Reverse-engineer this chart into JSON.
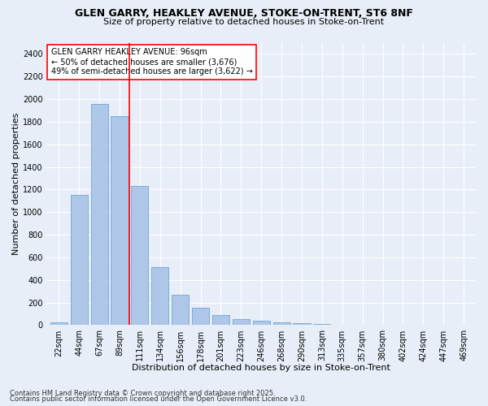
{
  "title1": "GLEN GARRY, HEAKLEY AVENUE, STOKE-ON-TRENT, ST6 8NF",
  "title2": "Size of property relative to detached houses in Stoke-on-Trent",
  "xlabel": "Distribution of detached houses by size in Stoke-on-Trent",
  "ylabel": "Number of detached properties",
  "categories": [
    "22sqm",
    "44sqm",
    "67sqm",
    "89sqm",
    "111sqm",
    "134sqm",
    "156sqm",
    "178sqm",
    "201sqm",
    "223sqm",
    "246sqm",
    "268sqm",
    "290sqm",
    "313sqm",
    "335sqm",
    "357sqm",
    "380sqm",
    "402sqm",
    "424sqm",
    "447sqm",
    "469sqm"
  ],
  "values": [
    22,
    1150,
    1960,
    1850,
    1230,
    510,
    270,
    155,
    90,
    55,
    40,
    25,
    20,
    10,
    5,
    5,
    5,
    5,
    3,
    3,
    3
  ],
  "bar_color": "#aec6e8",
  "bar_edge_color": "#5b9bd5",
  "vline_x": 3.48,
  "vline_color": "red",
  "annotation_text": "GLEN GARRY HEAKLEY AVENUE: 96sqm\n← 50% of detached houses are smaller (3,676)\n49% of semi-detached houses are larger (3,622) →",
  "annotation_box_color": "white",
  "annotation_box_edge": "red",
  "ylim": [
    0,
    2500
  ],
  "yticks": [
    0,
    200,
    400,
    600,
    800,
    1000,
    1200,
    1400,
    1600,
    1800,
    2000,
    2200,
    2400
  ],
  "bg_color": "#e8eef7",
  "grid_color": "white",
  "footer1": "Contains HM Land Registry data © Crown copyright and database right 2025.",
  "footer2": "Contains public sector information licensed under the Open Government Licence v3.0.",
  "title1_fontsize": 9,
  "title2_fontsize": 8,
  "xlabel_fontsize": 8,
  "ylabel_fontsize": 8,
  "tick_fontsize": 7,
  "annotation_fontsize": 7,
  "footer_fontsize": 6
}
